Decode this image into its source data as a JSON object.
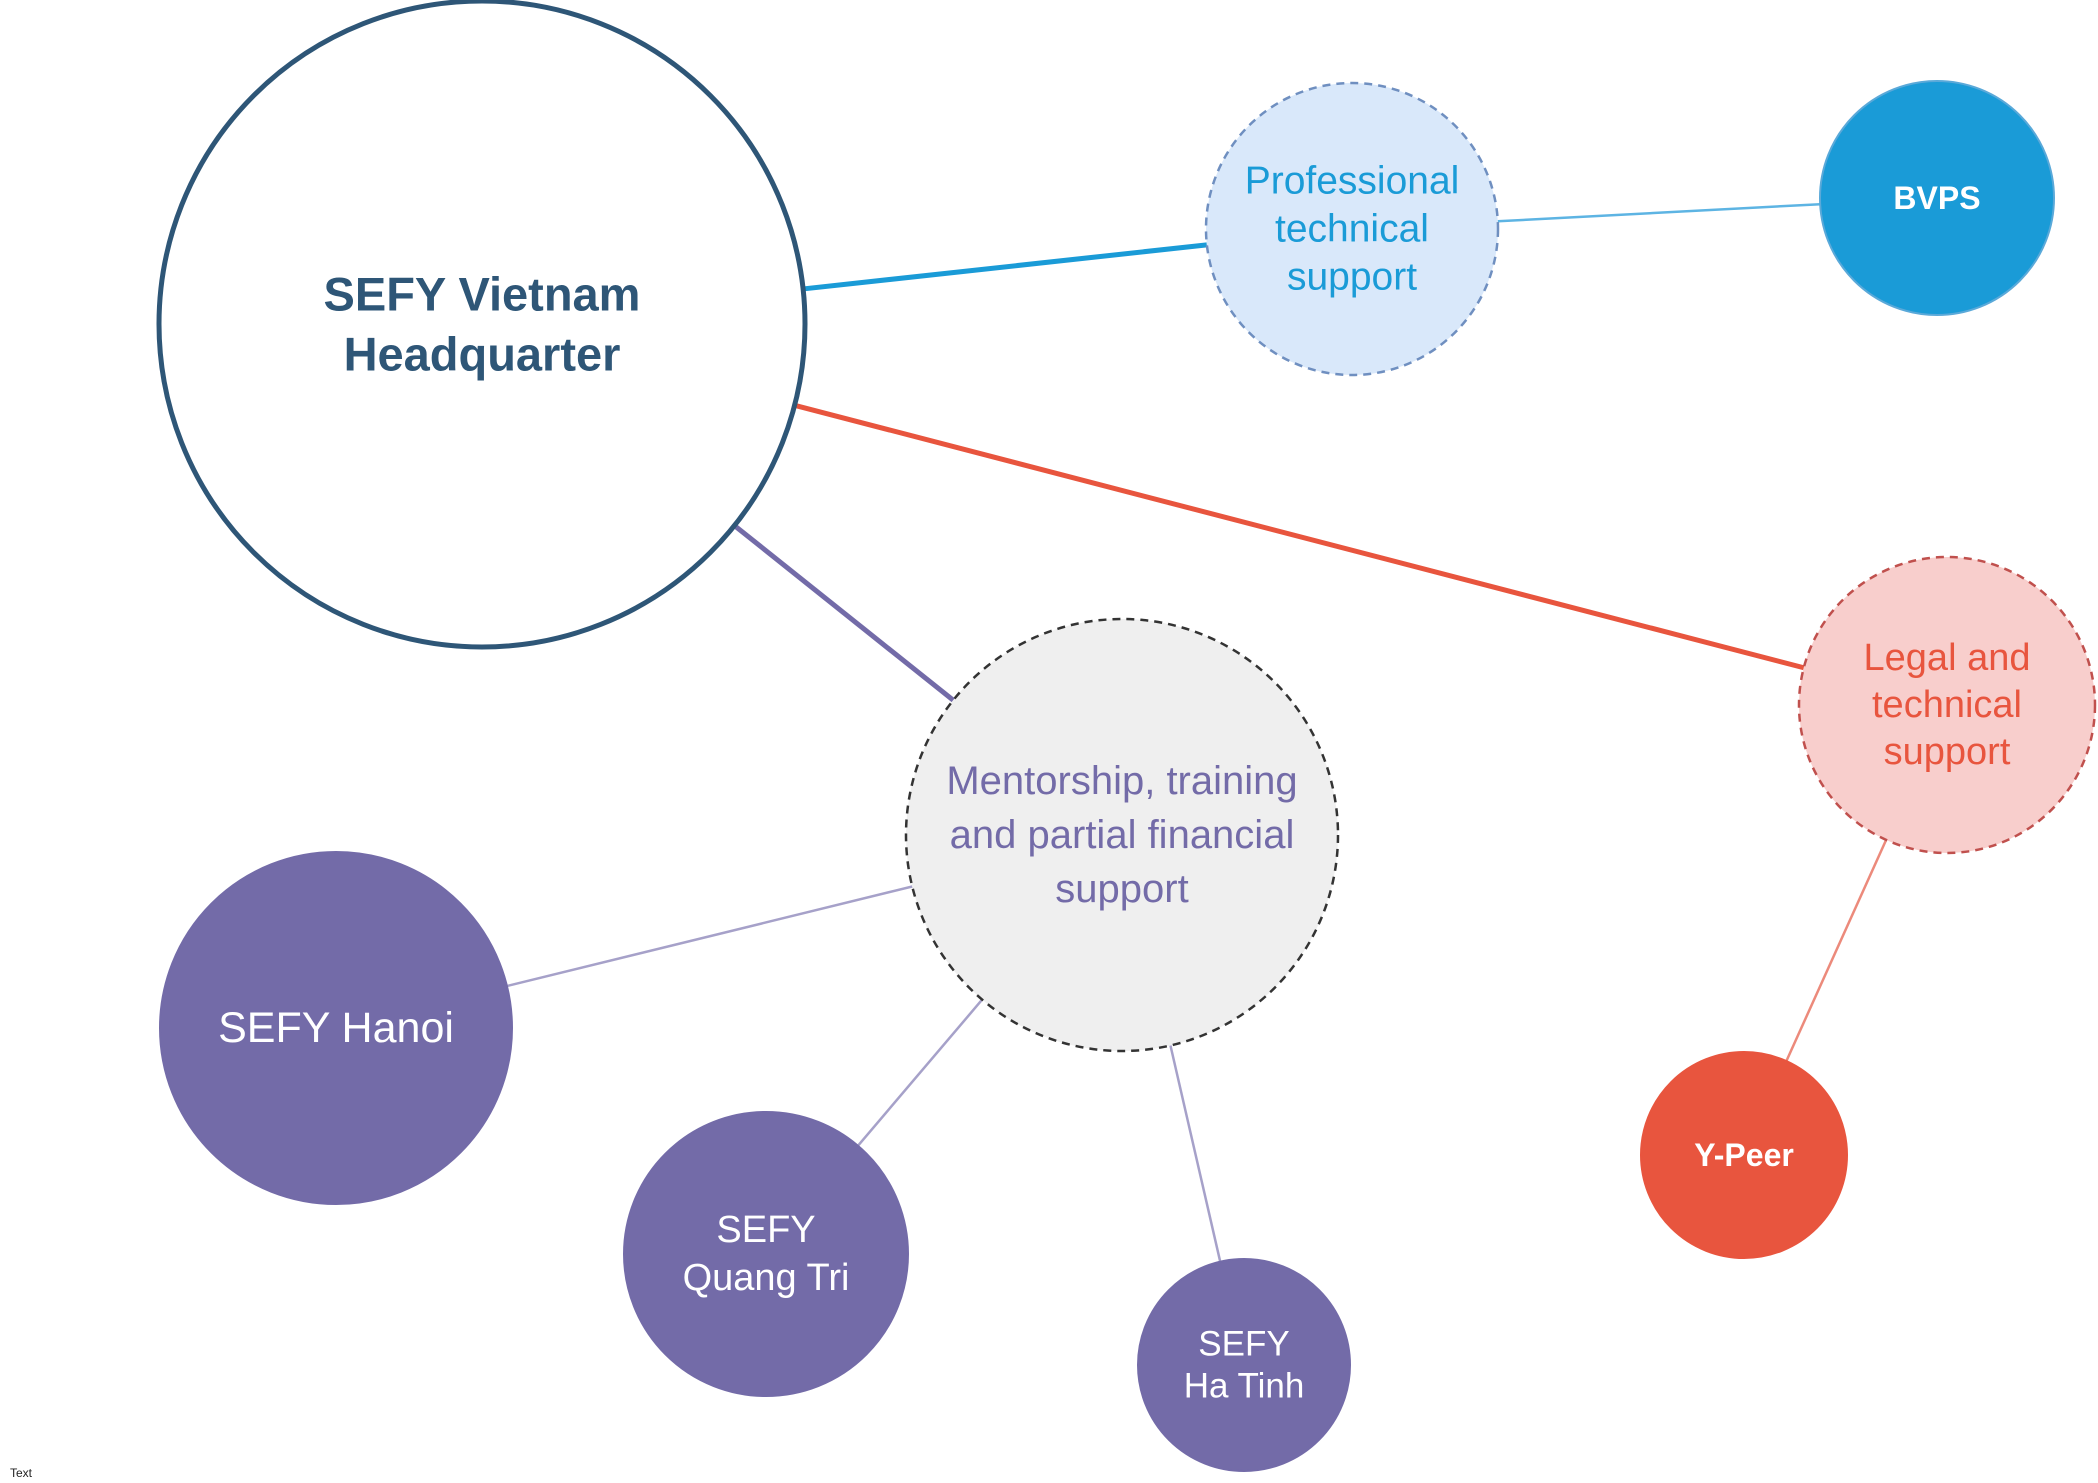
{
  "canvas": {
    "background": "#ffffff"
  },
  "corner_text": "Text",
  "colors": {
    "navy": "#2e5677",
    "blue": "#1a9bd7",
    "blue_light": "#d9e8fa",
    "red": "#e8553e",
    "red_light": "#f8cecc",
    "purple": "#736ba8",
    "gray_light": "#efefef"
  },
  "nodes": [
    {
      "id": "hq",
      "label_lines": [
        "SEFY Vietnam",
        "Headquarter"
      ]
    },
    {
      "id": "professional-support",
      "label_lines": [
        "Professional",
        "technical",
        "support"
      ]
    },
    {
      "id": "bvps",
      "label_lines": [
        "BVPS"
      ]
    },
    {
      "id": "legal-support",
      "label_lines": [
        "Legal and",
        "technical",
        "support"
      ]
    },
    {
      "id": "y-peer",
      "label_lines": [
        "Y-Peer"
      ]
    },
    {
      "id": "mentorship",
      "label_lines": [
        "Mentorship, training",
        "and partial financial",
        "support"
      ]
    },
    {
      "id": "sefy-hanoi",
      "label_lines": [
        "SEFY Hanoi"
      ]
    },
    {
      "id": "sefy-quang-tri",
      "label_lines": [
        "SEFY",
        "Quang Tri"
      ]
    },
    {
      "id": "sefy-ha-tinh",
      "label_lines": [
        "SEFY",
        "Ha Tinh"
      ]
    }
  ],
  "edges": [
    {
      "from": "hq",
      "to": "professional-support"
    },
    {
      "from": "professional-support",
      "to": "bvps"
    },
    {
      "from": "hq",
      "to": "legal-support"
    },
    {
      "from": "legal-support",
      "to": "y-peer"
    },
    {
      "from": "hq",
      "to": "mentorship"
    },
    {
      "from": "mentorship",
      "to": "sefy-hanoi"
    },
    {
      "from": "mentorship",
      "to": "sefy-quang-tri"
    },
    {
      "from": "mentorship",
      "to": "sefy-ha-tinh"
    }
  ]
}
